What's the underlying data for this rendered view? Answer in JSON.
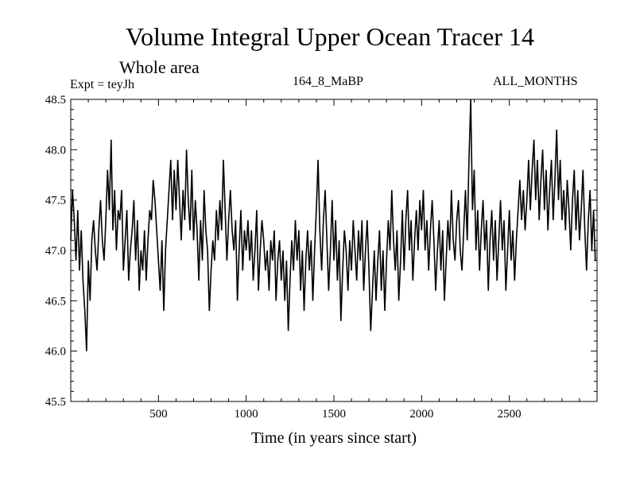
{
  "header": {
    "title": "Volume Integral Upper Ocean Tracer 14",
    "subtitle": "Whole area",
    "experiment": "Expt = teyJh",
    "run_label": "164_8_MaBP",
    "months_label": "ALL_MONTHS"
  },
  "chart_data": {
    "type": "line",
    "title": "Volume Integral Upper Ocean Tracer 14",
    "subtitle": "Whole area",
    "xlabel": "Time (in years since start)",
    "ylabel": "",
    "xlim": [
      0,
      3000
    ],
    "ylim": [
      45.5,
      48.5
    ],
    "x_ticks": [
      500,
      1000,
      1500,
      2000,
      2500
    ],
    "x_tick_labels": [
      "500",
      "1000",
      "1500",
      "2000",
      "2500"
    ],
    "y_ticks": [
      45.5,
      46.0,
      46.5,
      47.0,
      47.5,
      48.0,
      48.5
    ],
    "y_tick_labels": [
      "45.5",
      "46.0",
      "46.5",
      "47.0",
      "47.5",
      "48.0",
      "48.5"
    ],
    "grid": false,
    "series": [
      {
        "name": "Tracer 14",
        "color": "#000000",
        "x_start": 0,
        "x_step": 10,
        "values": [
          47.1,
          47.6,
          47.3,
          46.9,
          47.4,
          46.8,
          47.2,
          46.7,
          46.4,
          46.0,
          46.9,
          46.5,
          47.1,
          47.3,
          47.0,
          46.8,
          47.2,
          47.5,
          47.1,
          46.9,
          47.3,
          47.8,
          47.4,
          48.1,
          47.2,
          47.6,
          47.0,
          47.4,
          47.3,
          47.6,
          46.8,
          47.1,
          47.4,
          46.7,
          47.0,
          47.2,
          47.5,
          46.9,
          47.3,
          46.6,
          47.0,
          46.8,
          47.2,
          46.7,
          47.1,
          47.4,
          47.3,
          47.7,
          47.5,
          47.2,
          46.9,
          46.6,
          47.1,
          46.4,
          47.0,
          47.3,
          47.6,
          47.9,
          47.3,
          47.8,
          47.4,
          47.9,
          47.5,
          47.1,
          47.6,
          47.3,
          48.0,
          47.5,
          47.2,
          47.8,
          47.1,
          47.5,
          47.2,
          46.7,
          47.3,
          46.9,
          47.6,
          47.2,
          47.0,
          46.4,
          46.8,
          47.1,
          46.9,
          47.4,
          47.1,
          47.5,
          47.2,
          47.9,
          47.4,
          46.9,
          47.3,
          47.6,
          47.2,
          47.0,
          47.3,
          46.5,
          47.0,
          47.4,
          46.8,
          47.2,
          47.0,
          47.3,
          46.9,
          47.2,
          46.7,
          47.0,
          47.4,
          46.6,
          47.0,
          47.3,
          47.1,
          46.8,
          47.0,
          46.6,
          47.1,
          46.9,
          47.2,
          46.5,
          46.9,
          47.1,
          46.7,
          47.0,
          46.5,
          46.9,
          46.2,
          46.7,
          47.1,
          46.8,
          47.3,
          46.9,
          47.2,
          46.6,
          47.0,
          46.4,
          46.9,
          47.2,
          46.8,
          47.1,
          46.5,
          47.0,
          47.4,
          47.9,
          47.2,
          46.8,
          47.3,
          47.6,
          47.1,
          46.6,
          47.0,
          47.5,
          46.9,
          47.3,
          46.7,
          47.1,
          46.3,
          46.8,
          47.2,
          47.0,
          46.6,
          47.1,
          46.8,
          47.3,
          47.0,
          46.7,
          47.2,
          46.9,
          47.3,
          46.6,
          47.0,
          47.3,
          46.8,
          46.2,
          46.6,
          47.0,
          46.5,
          46.9,
          47.2,
          46.6,
          47.0,
          46.4,
          46.9,
          47.3,
          47.0,
          47.6,
          47.1,
          46.8,
          47.2,
          46.5,
          46.9,
          47.4,
          46.8,
          47.3,
          47.6,
          47.0,
          47.3,
          46.7,
          47.1,
          47.4,
          47.0,
          47.5,
          47.2,
          47.6,
          47.0,
          47.3,
          46.8,
          47.2,
          47.5,
          47.1,
          46.6,
          47.0,
          47.3,
          46.8,
          47.2,
          46.5,
          46.9,
          47.3,
          47.0,
          47.6,
          47.1,
          46.9,
          47.3,
          47.5,
          47.0,
          46.8,
          47.2,
          47.6,
          47.1,
          47.9,
          48.5,
          47.4,
          47.8,
          47.0,
          47.4,
          46.8,
          47.2,
          47.5,
          47.0,
          47.3,
          46.6,
          47.1,
          47.4,
          46.9,
          47.3,
          46.7,
          47.1,
          47.5,
          47.0,
          47.3,
          46.6,
          47.0,
          47.4,
          46.9,
          47.2,
          46.7,
          47.1,
          47.4,
          47.7,
          47.3,
          47.6,
          47.2,
          47.5,
          47.9,
          47.4,
          47.8,
          48.1,
          47.5,
          47.9,
          47.3,
          47.7,
          48.0,
          47.4,
          47.8,
          47.2,
          47.6,
          47.9,
          47.3,
          47.7,
          48.2,
          47.5,
          47.9,
          47.3,
          47.6,
          47.2,
          47.7,
          47.4,
          47.0,
          47.5,
          47.8,
          47.2,
          47.6,
          47.1,
          47.4,
          47.8,
          47.2,
          46.8,
          47.3,
          47.6,
          47.0,
          47.4,
          46.9
        ]
      }
    ]
  }
}
